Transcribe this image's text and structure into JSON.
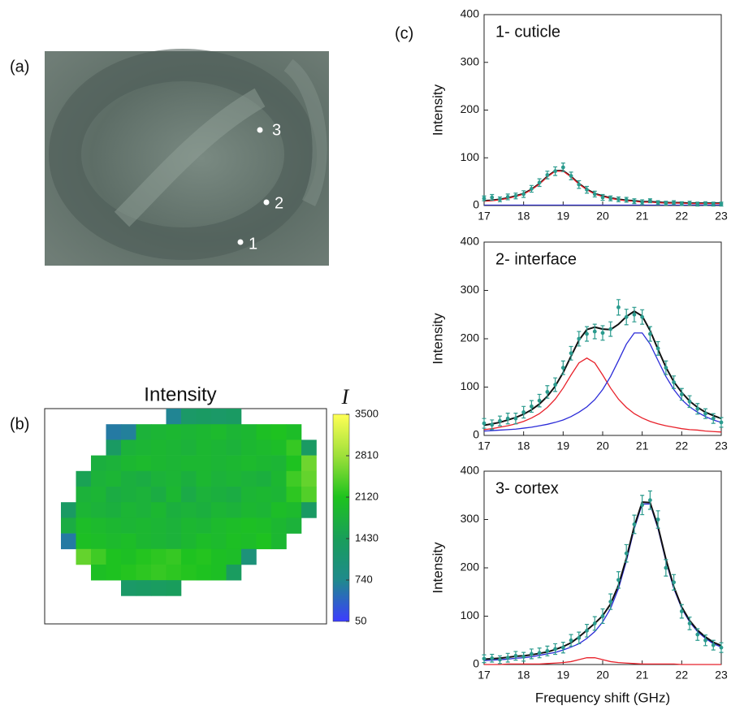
{
  "panel_labels": [
    "(a)",
    "(b)",
    "(c)"
  ],
  "image": {
    "points": [
      "1",
      "2",
      "3"
    ]
  },
  "chart_data": [
    {
      "type": "heatmap",
      "title": "Intensity",
      "colorbar_label": "I",
      "clim": [
        50,
        3500
      ],
      "cticks": [
        50,
        740,
        1430,
        2120,
        2810,
        3500
      ],
      "colors": [
        "#3c3cff",
        "#1f8a8c",
        "#199e5a",
        "#1ec31e",
        "#9ee03a",
        "#ffff55"
      ],
      "values": [
        [
          null,
          null,
          null,
          null,
          null,
          null,
          null,
          700,
          1250,
          1300,
          1250,
          1300,
          null,
          null,
          null,
          null,
          null
        ],
        [
          null,
          null,
          null,
          600,
          650,
          1800,
          1850,
          1900,
          1850,
          1900,
          1950,
          1850,
          1900,
          2050,
          2100,
          2000,
          null
        ],
        [
          null,
          null,
          null,
          1300,
          1800,
          1850,
          1900,
          1850,
          1800,
          1900,
          1850,
          1800,
          1900,
          1950,
          2000,
          2250,
          1300
        ],
        [
          null,
          null,
          1750,
          1800,
          1900,
          1950,
          1900,
          1850,
          1900,
          1900,
          1850,
          1900,
          1950,
          1900,
          1850,
          2100,
          2550
        ],
        [
          null,
          1500,
          1800,
          1850,
          1750,
          1700,
          1800,
          1850,
          1750,
          1900,
          1800,
          1850,
          1800,
          1750,
          1900,
          2300,
          2500
        ],
        [
          null,
          1800,
          1850,
          1700,
          1750,
          1800,
          1700,
          1900,
          1650,
          1800,
          1750,
          1700,
          1850,
          1900,
          1850,
          2200,
          2400
        ],
        [
          1300,
          1850,
          1800,
          1750,
          1850,
          1800,
          1900,
          1750,
          1800,
          1750,
          1850,
          1800,
          1900,
          1850,
          2000,
          1950,
          1300
        ],
        [
          1700,
          2000,
          1950,
          1900,
          1850,
          1900,
          1850,
          1800,
          1900,
          1850,
          1950,
          2000,
          2050,
          2000,
          1900,
          1800,
          null
        ],
        [
          600,
          2050,
          2000,
          1950,
          2000,
          1900,
          1850,
          1800,
          1900,
          2000,
          1950,
          2050,
          2000,
          2100,
          1900,
          null,
          null
        ],
        [
          null,
          2500,
          2300,
          2100,
          2050,
          2150,
          2200,
          2250,
          2100,
          2150,
          2050,
          2000,
          1000,
          null,
          null,
          null,
          null
        ],
        [
          null,
          null,
          2050,
          2100,
          2150,
          2200,
          2250,
          2200,
          2150,
          2100,
          2050,
          1350,
          null,
          null,
          null,
          null,
          null
        ],
        [
          null,
          null,
          null,
          null,
          1250,
          1300,
          1350,
          1400,
          null,
          null,
          null,
          null,
          null,
          null,
          null,
          null,
          null
        ]
      ]
    },
    {
      "type": "line",
      "title": "1- cuticle",
      "ylabel": "Intensity",
      "xlim": [
        17,
        23
      ],
      "xticks": [
        17,
        18,
        19,
        20,
        21,
        22,
        23
      ],
      "ylim": [
        0,
        400
      ],
      "yticks": [
        0,
        100,
        200,
        300,
        400
      ],
      "x": [
        17,
        17.2,
        17.4,
        17.6,
        17.8,
        18,
        18.2,
        18.4,
        18.6,
        18.8,
        19,
        19.2,
        19.4,
        19.6,
        19.8,
        20,
        20.2,
        20.4,
        20.6,
        20.8,
        21,
        21.2,
        21.4,
        21.6,
        21.8,
        22,
        22.2,
        22.4,
        22.6,
        22.8,
        23
      ],
      "series": [
        {
          "color": "#2b2bd8",
          "line_width": 1,
          "values": [
            1,
            1,
            1,
            1,
            1,
            1,
            1,
            1,
            1,
            1,
            1,
            1,
            1,
            1,
            1,
            1,
            1,
            1,
            1,
            1,
            1,
            1,
            1,
            1,
            1,
            1,
            1,
            1,
            1,
            1,
            1
          ]
        },
        {
          "color": "#111111",
          "line_width": 2,
          "values": [
            10,
            11,
            13,
            16,
            20,
            25,
            34,
            46,
            61,
            73,
            73,
            61,
            46,
            34,
            25,
            20,
            16,
            13,
            11,
            10,
            8,
            8,
            7,
            6,
            6,
            6,
            5,
            5,
            5,
            5,
            5
          ]
        },
        {
          "color": "#e8212a",
          "line_width": 1.3,
          "values": [
            9,
            10,
            12,
            15,
            19,
            24,
            33,
            45,
            60,
            72,
            72,
            60,
            45,
            33,
            24,
            19,
            15,
            12,
            10,
            9,
            7,
            7,
            6,
            5,
            5,
            5,
            4,
            4,
            4,
            4,
            4
          ]
        },
        {
          "color": "#2b9b8e",
          "style": "points",
          "values": [
            15,
            17,
            13,
            18,
            20,
            24,
            35,
            48,
            64,
            72,
            80,
            62,
            44,
            33,
            24,
            17,
            15,
            13,
            12,
            9,
            7,
            10,
            6,
            5,
            6,
            4,
            5,
            3,
            4,
            3,
            3
          ],
          "errors": [
            5,
            6,
            5,
            6,
            6,
            7,
            7,
            8,
            8,
            9,
            9,
            8,
            8,
            7,
            6,
            6,
            5,
            5,
            5,
            5,
            5,
            4,
            4,
            4,
            4,
            4,
            4,
            4,
            4,
            4,
            4
          ]
        }
      ]
    },
    {
      "type": "line",
      "title": "2- interface",
      "ylabel": "Intensity",
      "xlim": [
        17,
        23
      ],
      "xticks": [
        17,
        18,
        19,
        20,
        21,
        22,
        23
      ],
      "ylim": [
        0,
        400
      ],
      "yticks": [
        0,
        100,
        200,
        300,
        400
      ],
      "x": [
        17,
        17.2,
        17.4,
        17.6,
        17.8,
        18,
        18.2,
        18.4,
        18.6,
        18.8,
        19,
        19.2,
        19.4,
        19.6,
        19.8,
        20,
        20.2,
        20.4,
        20.6,
        20.8,
        21,
        21.2,
        21.4,
        21.6,
        21.8,
        22,
        22.2,
        22.4,
        22.6,
        22.8,
        23
      ],
      "series": [
        {
          "color": "#e8212a",
          "line_width": 1.3,
          "values": [
            12,
            14,
            17,
            20,
            24,
            29,
            36,
            45,
            58,
            75,
            98,
            125,
            150,
            160,
            150,
            125,
            98,
            75,
            58,
            45,
            36,
            29,
            24,
            20,
            17,
            14,
            12,
            11,
            9,
            8,
            7
          ]
        },
        {
          "color": "#2b2bd8",
          "line_width": 1.3,
          "values": [
            9,
            10,
            11,
            12,
            13,
            15,
            17,
            20,
            23,
            27,
            32,
            39,
            48,
            59,
            74,
            95,
            122,
            155,
            189,
            212,
            212,
            189,
            155,
            122,
            95,
            74,
            59,
            48,
            39,
            32,
            27
          ]
        },
        {
          "color": "#111111",
          "line_width": 2,
          "values": [
            21,
            24,
            27,
            32,
            37,
            44,
            53,
            65,
            81,
            102,
            130,
            164,
            197,
            219,
            224,
            220,
            219,
            230,
            246,
            257,
            247,
            217,
            178,
            141,
            111,
            89,
            71,
            58,
            48,
            41,
            35
          ]
        },
        {
          "color": "#2b9b8e",
          "style": "points",
          "values": [
            25,
            22,
            30,
            35,
            35,
            48,
            60,
            72,
            90,
            105,
            140,
            170,
            200,
            210,
            215,
            212,
            220,
            265,
            245,
            250,
            245,
            210,
            180,
            140,
            110,
            85,
            70,
            55,
            45,
            35,
            27
          ],
          "errors": [
            10,
            10,
            10,
            11,
            11,
            12,
            12,
            13,
            13,
            14,
            14,
            14,
            15,
            15,
            15,
            15,
            15,
            16,
            16,
            15,
            15,
            15,
            14,
            14,
            13,
            12,
            12,
            11,
            10,
            10,
            10
          ]
        }
      ]
    },
    {
      "type": "line",
      "title": "3- cortex",
      "ylabel": "Intensity",
      "xlabel": "Frequency shift (GHz)",
      "xlim": [
        17,
        23
      ],
      "xticks": [
        17,
        18,
        19,
        20,
        21,
        22,
        23
      ],
      "ylim": [
        0,
        400
      ],
      "yticks": [
        0,
        100,
        200,
        300,
        400
      ],
      "x": [
        17,
        17.2,
        17.4,
        17.6,
        17.8,
        18,
        18.2,
        18.4,
        18.6,
        18.8,
        19,
        19.2,
        19.4,
        19.6,
        19.8,
        20,
        20.2,
        20.4,
        20.6,
        20.8,
        21,
        21.2,
        21.4,
        21.6,
        21.8,
        22,
        22.2,
        22.4,
        22.6,
        22.8,
        23
      ],
      "series": [
        {
          "color": "#e8212a",
          "line_width": 1.3,
          "values": [
            0,
            0,
            0,
            1,
            1,
            1,
            1,
            1,
            2,
            3,
            4,
            6,
            10,
            14,
            14,
            10,
            6,
            4,
            3,
            2,
            1,
            1,
            1,
            1,
            1,
            0,
            0,
            0,
            0,
            0,
            0
          ]
        },
        {
          "color": "#2b2bd8",
          "line_width": 1.3,
          "values": [
            8,
            9,
            10,
            11,
            13,
            14,
            16,
            19,
            22,
            25,
            30,
            36,
            43,
            54,
            68,
            88,
            116,
            157,
            214,
            281,
            332,
            332,
            281,
            214,
            157,
            116,
            88,
            68,
            54,
            43,
            36
          ]
        },
        {
          "color": "#111111",
          "line_width": 2,
          "values": [
            11,
            12,
            13,
            15,
            17,
            18,
            20,
            23,
            26,
            31,
            37,
            45,
            57,
            71,
            85,
            101,
            125,
            164,
            220,
            286,
            336,
            335,
            285,
            218,
            161,
            119,
            91,
            71,
            57,
            46,
            39
          ]
        },
        {
          "color": "#2b9b8e",
          "style": "points",
          "values": [
            12,
            13,
            10,
            14,
            18,
            16,
            22,
            24,
            28,
            32,
            35,
            50,
            55,
            70,
            85,
            100,
            130,
            175,
            230,
            290,
            330,
            340,
            300,
            200,
            170,
            110,
            85,
            62,
            50,
            40,
            35
          ],
          "errors": [
            8,
            8,
            8,
            9,
            9,
            9,
            10,
            10,
            10,
            11,
            11,
            12,
            12,
            13,
            14,
            15,
            16,
            17,
            18,
            19,
            20,
            19,
            18,
            17,
            16,
            14,
            13,
            12,
            11,
            10,
            10
          ]
        }
      ]
    }
  ]
}
